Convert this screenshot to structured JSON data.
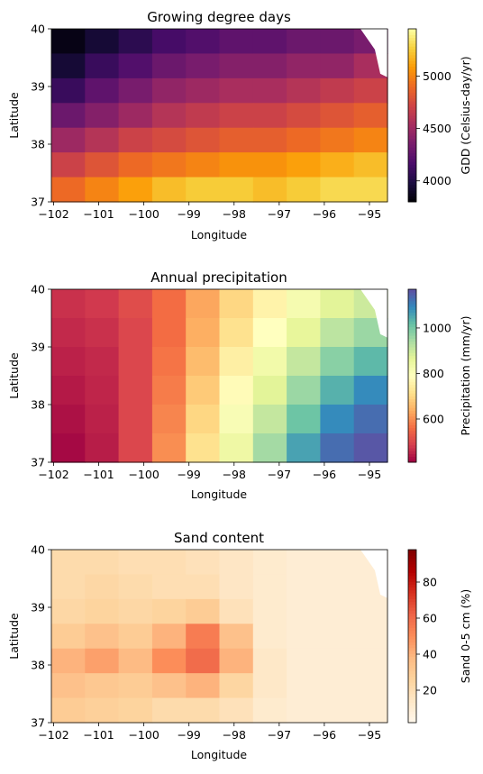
{
  "chart_data": [
    {
      "type": "heatmap",
      "title": "Growing degree days",
      "xlabel": "Longitude",
      "ylabel": "Latitude",
      "xlim": [
        -102.05,
        -94.6
      ],
      "ylim": [
        37.0,
        40.0
      ],
      "xticks": [
        -102,
        -101,
        -100,
        -99,
        -98,
        -97,
        -96,
        -95
      ],
      "xtick_labels": [
        "−102",
        "−101",
        "−100",
        "−99",
        "−98",
        "−97",
        "−96",
        "−95"
      ],
      "yticks": [
        37,
        38,
        39,
        40
      ],
      "ytick_labels": [
        "37",
        "38",
        "39",
        "40"
      ],
      "colormap": "inferno",
      "colorbar_label": "GDD (Celsius-day/yr)",
      "colorbar_range": [
        3800,
        5450
      ],
      "colorbar_ticks": [
        4000,
        4500,
        5000
      ],
      "colorbar_tick_labels": [
        "4000",
        "4500",
        "5000"
      ],
      "grid_values": [
        [
          3850,
          3950,
          4050,
          4150,
          4200,
          4250,
          4250,
          4300,
          4300,
          4350
        ],
        [
          3950,
          4100,
          4200,
          4300,
          4350,
          4400,
          4400,
          4450,
          4450,
          4550
        ],
        [
          4100,
          4250,
          4350,
          4450,
          4500,
          4550,
          4550,
          4600,
          4650,
          4700
        ],
        [
          4300,
          4400,
          4500,
          4600,
          4650,
          4700,
          4700,
          4750,
          4800,
          4850
        ],
        [
          4500,
          4600,
          4700,
          4750,
          4800,
          4850,
          4850,
          4900,
          4950,
          5000
        ],
        [
          4700,
          4800,
          4900,
          4950,
          5000,
          5050,
          5050,
          5100,
          5150,
          5200
        ],
        [
          4900,
          5000,
          5100,
          5200,
          5250,
          5250,
          5200,
          5250,
          5300,
          5300
        ]
      ]
    },
    {
      "type": "heatmap",
      "title": "Annual precipitation",
      "xlabel": "Longitude",
      "ylabel": "Latitude",
      "xlim": [
        -102.05,
        -94.6
      ],
      "ylim": [
        37.0,
        40.0
      ],
      "xticks": [
        -102,
        -101,
        -100,
        -99,
        -98,
        -97,
        -96,
        -95
      ],
      "xtick_labels": [
        "−102",
        "−101",
        "−100",
        "−99",
        "−98",
        "−97",
        "−96",
        "−95"
      ],
      "yticks": [
        37,
        38,
        39,
        40
      ],
      "ytick_labels": [
        "37",
        "38",
        "39",
        "40"
      ],
      "colormap": "Spectral",
      "colorbar_label": "Precipitation (mm/yr)",
      "colorbar_range": [
        410,
        1170
      ],
      "colorbar_ticks": [
        600,
        800,
        1000
      ],
      "colorbar_tick_labels": [
        "600",
        "800",
        "1000"
      ],
      "grid_values": [
        [
          470,
          480,
          510,
          560,
          630,
          700,
          760,
          820,
          870,
          900
        ],
        [
          460,
          470,
          500,
          560,
          640,
          720,
          790,
          860,
          920,
          960
        ],
        [
          450,
          460,
          500,
          570,
          660,
          750,
          830,
          910,
          980,
          1030
        ],
        [
          440,
          455,
          500,
          580,
          680,
          780,
          870,
          960,
          1040,
          1090
        ],
        [
          430,
          450,
          500,
          590,
          700,
          810,
          910,
          1010,
          1090,
          1130
        ],
        [
          420,
          445,
          500,
          600,
          720,
          840,
          950,
          1060,
          1130,
          1160
        ]
      ]
    },
    {
      "type": "heatmap",
      "title": "Sand content",
      "xlabel": "Longitude",
      "ylabel": "Latitude",
      "xlim": [
        -102.05,
        -94.6
      ],
      "ylim": [
        37.0,
        40.0
      ],
      "xticks": [
        -102,
        -101,
        -100,
        -99,
        -98,
        -97,
        -96,
        -95
      ],
      "xtick_labels": [
        "−102",
        "−101",
        "−100",
        "−99",
        "−98",
        "−97",
        "−96",
        "−95"
      ],
      "yticks": [
        37,
        38,
        39,
        40
      ],
      "ytick_labels": [
        "37",
        "38",
        "39",
        "40"
      ],
      "colormap": "OrRd",
      "colorbar_label": "Sand 0-5 cm (%)",
      "colorbar_range": [
        2,
        98
      ],
      "colorbar_ticks": [
        20,
        40,
        60,
        80
      ],
      "colorbar_tick_labels": [
        "20",
        "40",
        "60",
        "80"
      ],
      "grid_values": [
        [
          22,
          22,
          20,
          20,
          18,
          15,
          12,
          10,
          10,
          10
        ],
        [
          22,
          24,
          22,
          20,
          20,
          15,
          12,
          10,
          10,
          10
        ],
        [
          24,
          26,
          24,
          26,
          30,
          18,
          12,
          10,
          10,
          10
        ],
        [
          30,
          35,
          30,
          40,
          55,
          35,
          12,
          10,
          10,
          10
        ],
        [
          40,
          45,
          38,
          50,
          60,
          40,
          14,
          10,
          10,
          10
        ],
        [
          35,
          32,
          30,
          35,
          40,
          25,
          14,
          10,
          10,
          10
        ],
        [
          30,
          28,
          26,
          22,
          22,
          18,
          12,
          10,
          10,
          10
        ]
      ]
    }
  ]
}
